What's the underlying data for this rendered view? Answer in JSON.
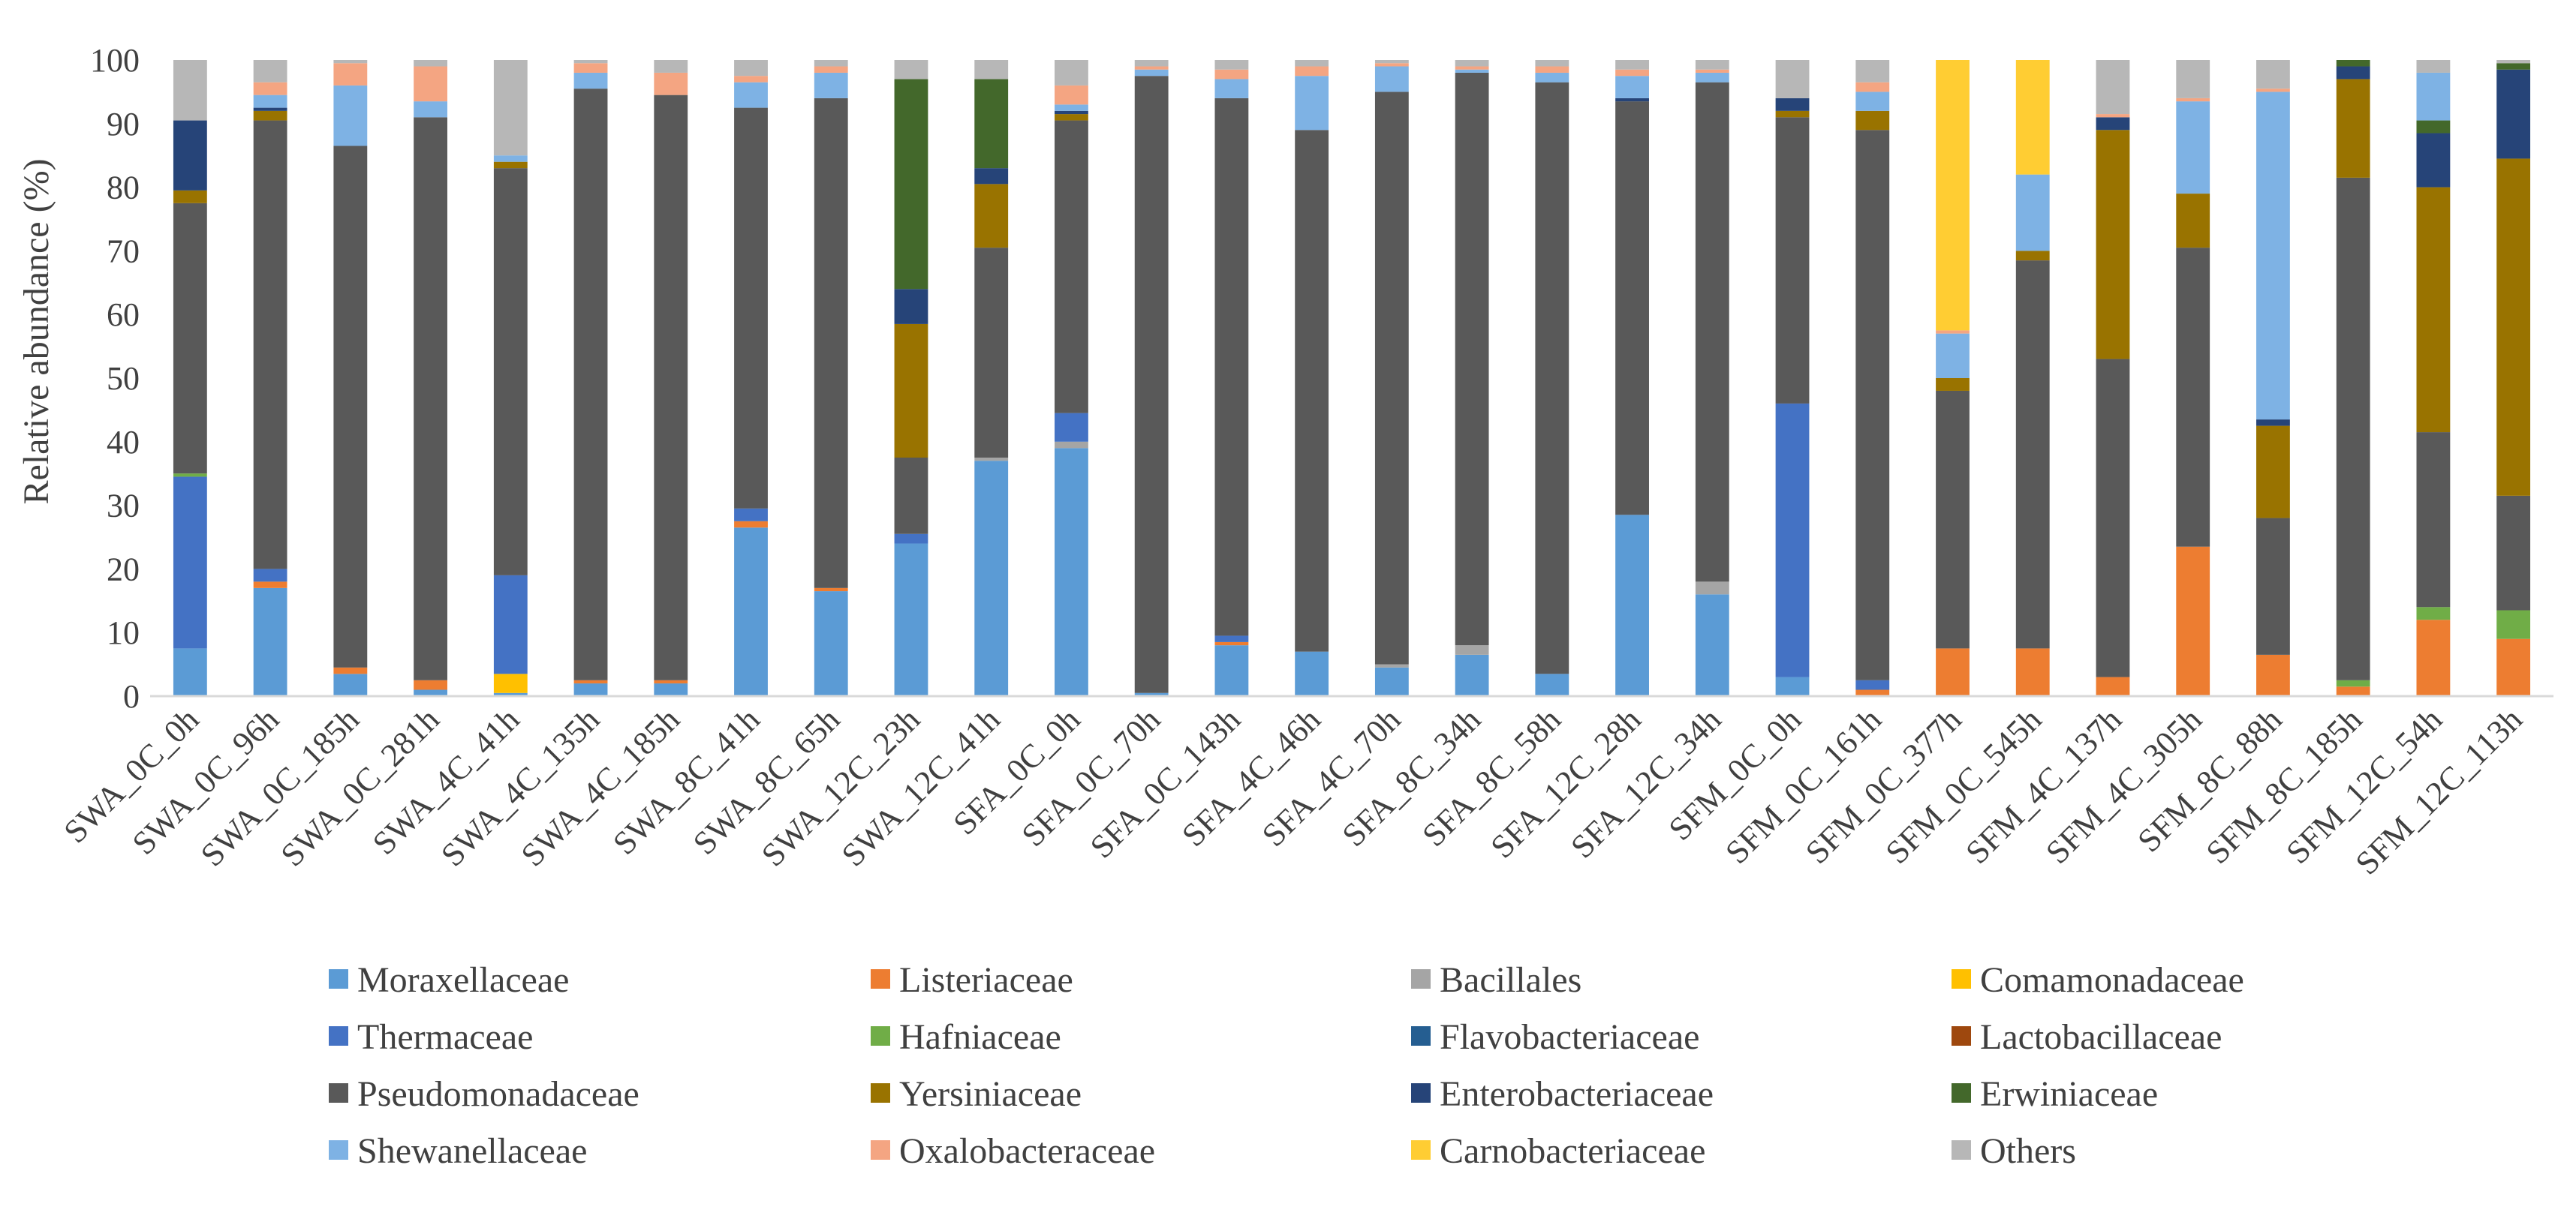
{
  "chart_data": {
    "type": "bar",
    "stacked": true,
    "title": "",
    "xlabel": "",
    "ylabel": "Relative abundance (%)",
    "ylim": [
      0,
      100
    ],
    "yticks": [
      0,
      10,
      20,
      30,
      40,
      50,
      60,
      70,
      80,
      90,
      100
    ],
    "grid": false,
    "legend_position": "bottom",
    "categories": [
      "SWA_0C_0h",
      "SWA_0C_96h",
      "SWA_0C_185h",
      "SWA_0C_281h",
      "SWA_4C_41h",
      "SWA_4C_135h",
      "SWA_4C_185h",
      "SWA_8C_41h",
      "SWA_8C_65h",
      "SWA_12C_23h",
      "SWA_12C_41h",
      "SFA_0C_0h",
      "SFA_0C_70h",
      "SFA_0C_143h",
      "SFA_4C_46h",
      "SFA_4C_70h",
      "SFA_8C_34h",
      "SFA_8C_58h",
      "SFA_12C_28h",
      "SFA_12C_34h",
      "SFM_0C_0h",
      "SFM_0C_161h",
      "SFM_0C_377h",
      "SFM_0C_545h",
      "SFM_4C_137h",
      "SFM_4C_305h",
      "SFM_8C_88h",
      "SFM_8C_185h",
      "SFM_12C_54h",
      "SFM_12C_113h"
    ],
    "series": [
      {
        "name": "Moraxellaceae",
        "color": "#5b9bd5",
        "values": [
          7.5,
          17,
          3.5,
          1,
          0.5,
          2,
          2,
          26.5,
          16.5,
          24,
          37,
          39,
          0.5,
          8,
          7,
          4.5,
          6.5,
          3.5,
          28.5,
          16,
          3,
          0,
          0,
          0,
          0,
          0,
          0,
          0,
          0,
          0
        ]
      },
      {
        "name": "Listeriaceae",
        "color": "#ed7d31",
        "values": [
          0,
          1,
          1,
          1.5,
          0,
          0.5,
          0.5,
          1,
          0.5,
          0,
          0,
          0,
          0,
          0.5,
          0,
          0,
          0,
          0,
          0,
          0,
          0,
          1,
          7.5,
          7.5,
          3,
          23.5,
          6.5,
          1.5,
          12,
          9
        ]
      },
      {
        "name": "Bacillales",
        "color": "#a5a5a5",
        "values": [
          0,
          0,
          0,
          0,
          0,
          0,
          0,
          0,
          0,
          0,
          0.5,
          1,
          0,
          0,
          0,
          0.5,
          1.5,
          0,
          0,
          2,
          0,
          0,
          0,
          0,
          0,
          0,
          0,
          0,
          0,
          0
        ]
      },
      {
        "name": "Comamonadaceae",
        "color": "#ffc000",
        "values": [
          0,
          0,
          0,
          0,
          3,
          0,
          0,
          0,
          0,
          0,
          0,
          0,
          0,
          0,
          0,
          0,
          0,
          0,
          0,
          0,
          0,
          0,
          0,
          0,
          0,
          0,
          0,
          0,
          0,
          0
        ]
      },
      {
        "name": "Thermaceae",
        "color": "#4472c4",
        "values": [
          27,
          2,
          0,
          0,
          15.5,
          0,
          0,
          2,
          0,
          1.5,
          0,
          4.5,
          0,
          1,
          0,
          0,
          0,
          0,
          0,
          0,
          43,
          1.5,
          0,
          0,
          0,
          0,
          0,
          0,
          0,
          0
        ]
      },
      {
        "name": "Hafniaceae",
        "color": "#70ad47",
        "values": [
          0.5,
          0,
          0,
          0,
          0,
          0,
          0,
          0,
          0,
          0,
          0,
          0,
          0,
          0,
          0,
          0,
          0,
          0,
          0,
          0,
          0,
          0,
          0,
          0,
          0,
          0,
          0,
          1,
          2,
          4.5
        ]
      },
      {
        "name": "Flavobacteriaceae",
        "color": "#255e91",
        "values": [
          0,
          0,
          0,
          0,
          0,
          0,
          0,
          0,
          0,
          0,
          0,
          0,
          0,
          0,
          0,
          0,
          0,
          0,
          0,
          0,
          0,
          0,
          0,
          0,
          0,
          0,
          0,
          0,
          0,
          0
        ]
      },
      {
        "name": "Lactobacillaceae",
        "color": "#9e480e",
        "values": [
          0,
          0,
          0,
          0,
          0,
          0,
          0,
          0,
          0,
          0,
          0,
          0,
          0,
          0,
          0,
          0,
          0,
          0,
          0,
          0,
          0,
          0,
          0,
          0,
          0,
          0,
          0,
          0,
          0,
          0
        ]
      },
      {
        "name": "Pseudomonadaceae",
        "color": "#595959",
        "values": [
          42.5,
          70.5,
          82,
          88.5,
          64,
          93,
          92,
          63,
          77,
          12,
          33,
          46,
          97,
          84.5,
          82,
          90,
          90,
          93,
          65,
          78.5,
          45,
          86.5,
          40.5,
          61,
          50,
          47,
          21.5,
          79,
          27.5,
          18
        ]
      },
      {
        "name": "Yersiniaceae",
        "color": "#997300",
        "values": [
          2,
          1.5,
          0,
          0,
          1,
          0,
          0,
          0,
          0,
          21,
          10,
          1,
          0,
          0,
          0,
          0,
          0,
          0,
          0,
          0,
          1,
          3,
          2,
          1.5,
          36,
          8.5,
          14.5,
          15.5,
          38.5,
          53
        ]
      },
      {
        "name": "Enterobacteriaceae",
        "color": "#264478",
        "values": [
          11,
          0.5,
          0,
          0,
          0,
          0,
          0,
          0,
          0,
          5.5,
          2.5,
          0.5,
          0,
          0,
          0,
          0,
          0,
          0,
          0.5,
          0,
          2,
          0,
          0,
          0,
          2,
          0,
          1,
          2,
          8.5,
          14
        ]
      },
      {
        "name": "Erwiniaceae",
        "color": "#43682b",
        "values": [
          0,
          0,
          0,
          0,
          0,
          0,
          0,
          0,
          0,
          33,
          14,
          0,
          0,
          0,
          0,
          0,
          0,
          0,
          0,
          0,
          0,
          0,
          0,
          0,
          0,
          0,
          0,
          1,
          2,
          1
        ]
      },
      {
        "name": "Shewanellaceae",
        "color": "#7eb2e4",
        "values": [
          0,
          2,
          9.5,
          2.5,
          1,
          2.5,
          0,
          4,
          4,
          0,
          0,
          1,
          1,
          3,
          8.5,
          4,
          0.5,
          1.5,
          3.5,
          1.5,
          0,
          3,
          7,
          12,
          0,
          14.5,
          51.5,
          0,
          7.5,
          0
        ]
      },
      {
        "name": "Oxalobacteraceae",
        "color": "#f4a582",
        "values": [
          0,
          2,
          3.5,
          5.5,
          0,
          1.5,
          3.5,
          1,
          1,
          0,
          0,
          3,
          0.5,
          1.5,
          1.5,
          0.5,
          0.5,
          1,
          1,
          0.5,
          0,
          1.5,
          0.5,
          0,
          0.5,
          0.5,
          0.5,
          0,
          0,
          0
        ]
      },
      {
        "name": "Carnobacteriaceae",
        "color": "#ffcd33",
        "values": [
          0,
          0,
          0,
          0,
          0,
          0,
          0,
          0,
          0,
          0,
          0,
          0,
          0,
          0,
          0,
          0,
          0,
          0,
          0,
          0,
          0,
          0,
          42.5,
          18,
          0,
          0,
          0,
          0,
          0,
          0
        ]
      },
      {
        "name": "Others",
        "color": "#b7b7b7",
        "values": [
          9.5,
          3.5,
          0.5,
          1,
          15,
          0.5,
          2,
          2.5,
          1,
          3,
          3,
          4,
          1,
          1.5,
          1,
          0.5,
          1.5,
          1,
          1.5,
          1.5,
          6,
          3.5,
          0,
          0,
          8.5,
          6,
          4.5,
          0.5,
          2,
          0.5
        ]
      }
    ]
  }
}
